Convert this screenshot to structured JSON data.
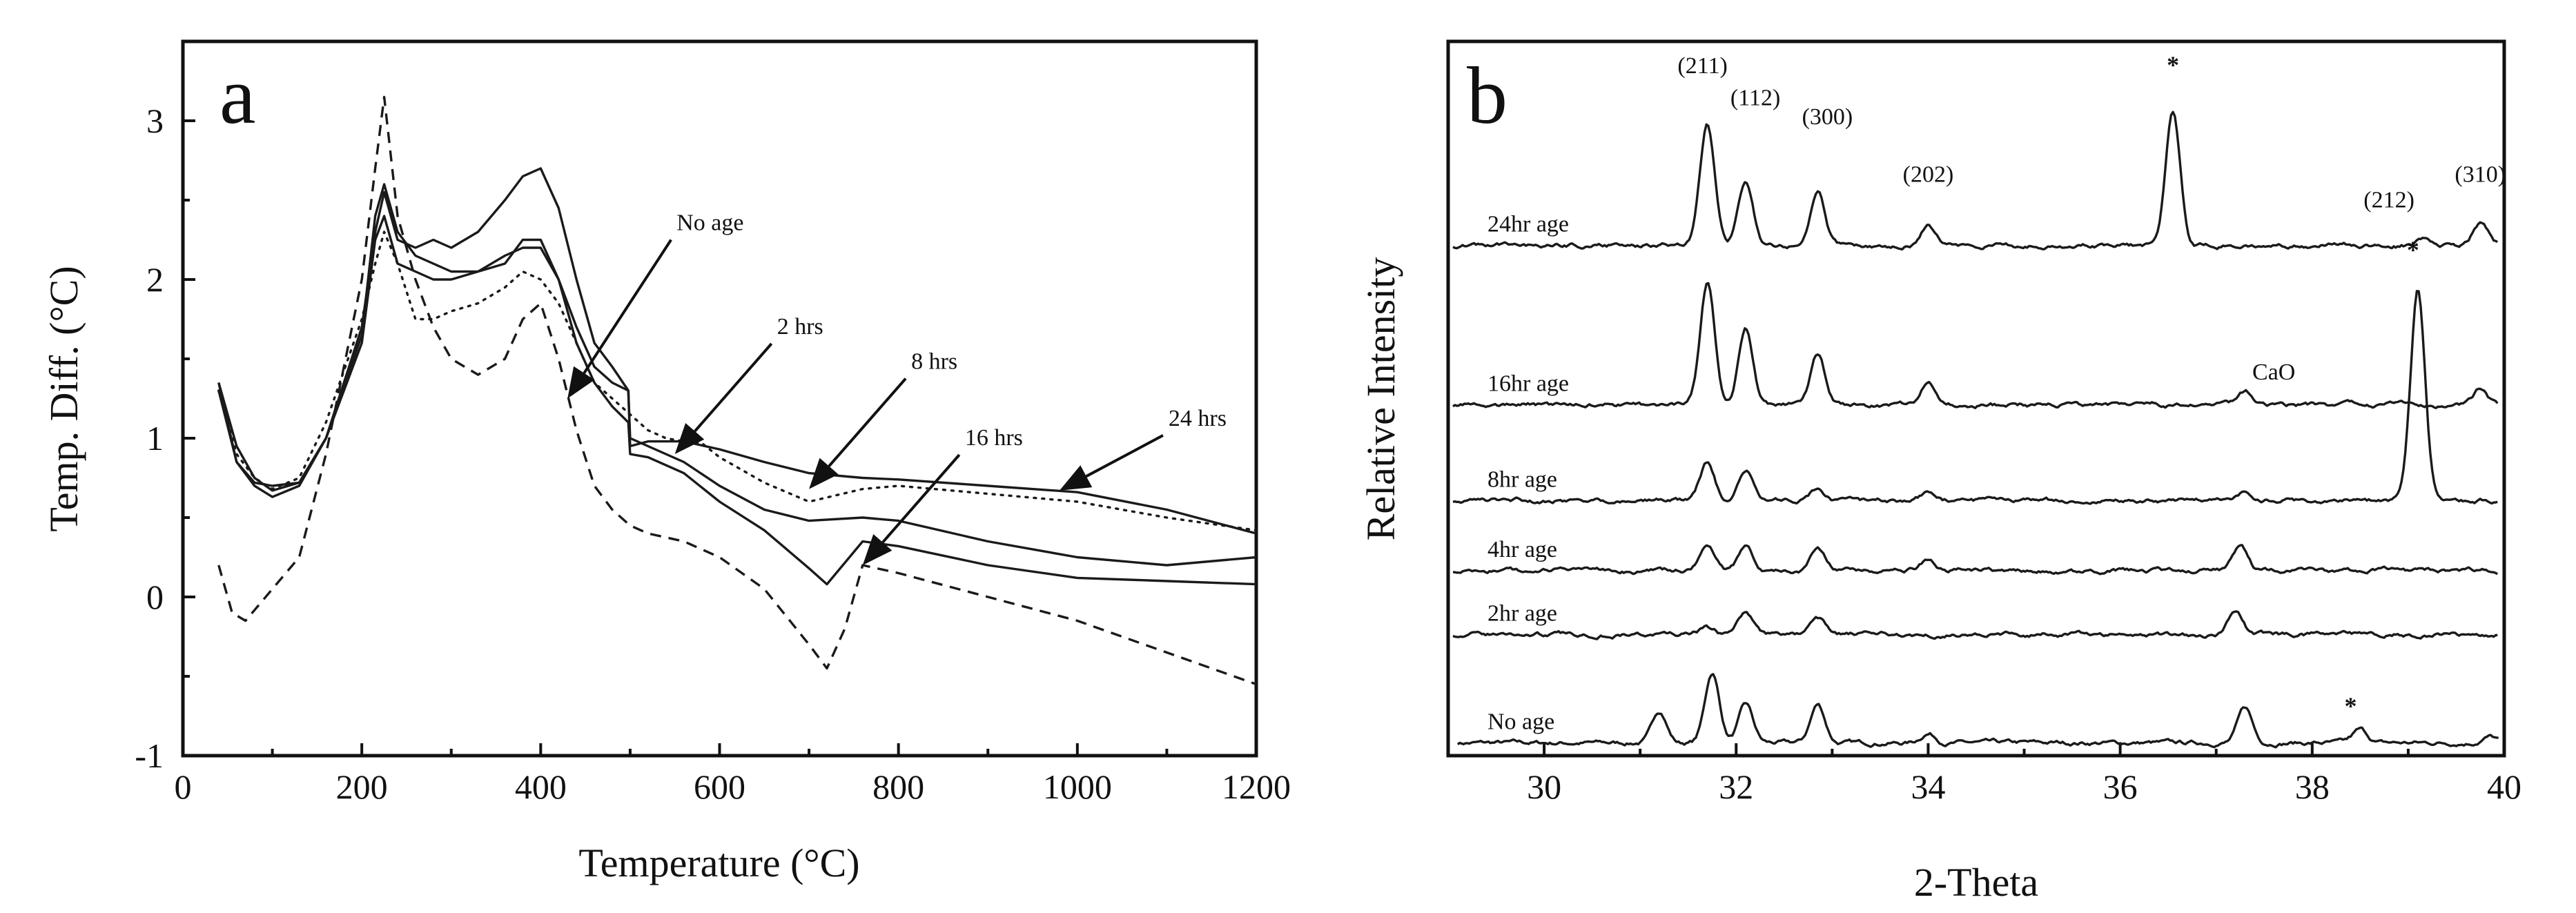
{
  "chart_data": [
    {
      "panel": "a",
      "type": "line",
      "xlabel": "Temperature (°C)",
      "ylabel": "Temp. Diff. (°C)",
      "xlim": [
        0,
        1200
      ],
      "ylim": [
        -1,
        3.5
      ],
      "xticks": [
        0,
        200,
        400,
        600,
        800,
        1000,
        1200
      ],
      "yticks": [
        -1,
        0,
        1,
        2,
        3
      ],
      "series": [
        {
          "name": "No age",
          "style": "dotted",
          "x": [
            40,
            60,
            80,
            100,
            130,
            160,
            200,
            215,
            225,
            240,
            260,
            280,
            300,
            330,
            360,
            380,
            400,
            420,
            440,
            460,
            480,
            500,
            520,
            540,
            560,
            580,
            600,
            650,
            700,
            760,
            800,
            900,
            1000,
            1100,
            1200
          ],
          "y": [
            1.3,
            0.9,
            0.75,
            0.68,
            0.75,
            1.1,
            1.75,
            2.1,
            2.3,
            2.1,
            1.75,
            1.75,
            1.8,
            1.85,
            1.95,
            2.05,
            2.0,
            1.85,
            1.6,
            1.35,
            1.25,
            1.15,
            1.05,
            1.0,
            0.98,
            0.97,
            0.88,
            0.72,
            0.6,
            0.68,
            0.7,
            0.65,
            0.6,
            0.5,
            0.42
          ]
        },
        {
          "name": "2 hrs",
          "style": "solid",
          "x": [
            40,
            60,
            80,
            100,
            130,
            160,
            200,
            215,
            225,
            240,
            260,
            280,
            300,
            330,
            360,
            380,
            400,
            420,
            440,
            460,
            480,
            498,
            500,
            520,
            560,
            600,
            650,
            700,
            760,
            800,
            900,
            1000,
            1100,
            1200
          ],
          "y": [
            1.35,
            0.95,
            0.75,
            0.67,
            0.72,
            1.0,
            1.6,
            2.25,
            2.4,
            2.1,
            2.05,
            2.0,
            2.0,
            2.05,
            2.15,
            2.2,
            2.2,
            2.0,
            1.7,
            1.45,
            1.35,
            1.3,
            0.95,
            0.98,
            0.98,
            0.93,
            0.85,
            0.78,
            0.75,
            0.74,
            0.7,
            0.66,
            0.55,
            0.4
          ]
        },
        {
          "name": "8 hrs",
          "style": "solid",
          "x": [
            40,
            60,
            80,
            100,
            130,
            160,
            200,
            215,
            225,
            240,
            260,
            280,
            300,
            330,
            360,
            380,
            400,
            420,
            440,
            460,
            480,
            498,
            500,
            520,
            560,
            600,
            650,
            700,
            760,
            800,
            900,
            1000,
            1100,
            1200
          ],
          "y": [
            1.3,
            0.85,
            0.72,
            0.7,
            0.72,
            1.0,
            1.7,
            2.3,
            2.55,
            2.25,
            2.2,
            2.25,
            2.2,
            2.3,
            2.5,
            2.65,
            2.7,
            2.45,
            2.0,
            1.6,
            1.45,
            1.3,
            1.0,
            0.95,
            0.85,
            0.7,
            0.55,
            0.48,
            0.5,
            0.48,
            0.35,
            0.25,
            0.2,
            0.25
          ]
        },
        {
          "name": "16 hrs",
          "style": "solid",
          "x": [
            40,
            60,
            80,
            100,
            130,
            160,
            200,
            215,
            225,
            240,
            260,
            280,
            300,
            330,
            360,
            380,
            400,
            420,
            440,
            460,
            480,
            498,
            500,
            520,
            560,
            600,
            650,
            700,
            720,
            760,
            800,
            900,
            1000,
            1100,
            1200
          ],
          "y": [
            1.35,
            0.85,
            0.7,
            0.63,
            0.7,
            1.0,
            1.65,
            2.4,
            2.6,
            2.3,
            2.15,
            2.1,
            2.05,
            2.05,
            2.1,
            2.25,
            2.25,
            2.0,
            1.6,
            1.35,
            1.2,
            1.1,
            0.9,
            0.88,
            0.78,
            0.6,
            0.42,
            0.18,
            0.08,
            0.35,
            0.32,
            0.2,
            0.12,
            0.1,
            0.08
          ]
        },
        {
          "name": "24 hrs",
          "style": "dashed",
          "x": [
            40,
            55,
            70,
            100,
            130,
            160,
            200,
            215,
            225,
            240,
            260,
            280,
            300,
            330,
            360,
            380,
            400,
            420,
            440,
            460,
            480,
            500,
            520,
            560,
            600,
            650,
            700,
            720,
            740,
            760,
            800,
            900,
            1000,
            1100,
            1200
          ],
          "y": [
            0.2,
            -0.1,
            -0.15,
            0.05,
            0.25,
            0.9,
            2.0,
            2.7,
            3.15,
            2.4,
            2.0,
            1.7,
            1.5,
            1.4,
            1.5,
            1.75,
            1.85,
            1.5,
            1.05,
            0.7,
            0.55,
            0.45,
            0.4,
            0.35,
            0.25,
            0.05,
            -0.3,
            -0.45,
            -0.2,
            0.2,
            0.15,
            0.0,
            -0.15,
            -0.35,
            -0.55
          ]
        }
      ],
      "arrow_labels": [
        {
          "text": "No age",
          "target_x": 430,
          "target_y": 1.25
        },
        {
          "text": "2 hrs",
          "target_x": 550,
          "target_y": 0.9
        },
        {
          "text": "8 hrs",
          "target_x": 700,
          "target_y": 0.68
        },
        {
          "text": "16 hrs",
          "target_x": 760,
          "target_y": 0.2
        },
        {
          "text": "24 hrs",
          "target_x": 980,
          "target_y": 0.67
        }
      ]
    },
    {
      "panel": "b",
      "type": "line",
      "xlabel": "2-Theta",
      "ylabel": "Relative Intensity",
      "xlim": [
        29,
        40
      ],
      "xticks": [
        30,
        32,
        34,
        36,
        38,
        40
      ],
      "series": [
        {
          "name": "No age",
          "baseline": 0.02,
          "peaks": [
            [
              31.2,
              0.05
            ],
            [
              31.75,
              0.11
            ],
            [
              32.1,
              0.06
            ],
            [
              32.85,
              0.06
            ],
            [
              34.0,
              0.015
            ],
            [
              37.3,
              0.055
            ],
            [
              38.5,
              0.02
            ],
            [
              39.85,
              0.01
            ]
          ]
        },
        {
          "name": "2hr age",
          "baseline": 0.19,
          "peaks": [
            [
              31.7,
              0.01
            ],
            [
              32.1,
              0.035
            ],
            [
              32.85,
              0.025
            ],
            [
              37.2,
              0.035
            ]
          ]
        },
        {
          "name": "4hr age",
          "baseline": 0.29,
          "peaks": [
            [
              31.7,
              0.04
            ],
            [
              32.1,
              0.035
            ],
            [
              32.85,
              0.035
            ],
            [
              34.0,
              0.015
            ],
            [
              37.25,
              0.04
            ]
          ]
        },
        {
          "name": "8hr age",
          "baseline": 0.4,
          "peaks": [
            [
              31.7,
              0.06
            ],
            [
              32.1,
              0.045
            ],
            [
              32.85,
              0.02
            ],
            [
              34.0,
              0.015
            ],
            [
              37.3,
              0.015
            ],
            [
              39.1,
              0.33
            ]
          ]
        },
        {
          "name": "16hr age",
          "baseline": 0.55,
          "peaks": [
            [
              31.7,
              0.19
            ],
            [
              32.1,
              0.12
            ],
            [
              32.85,
              0.08
            ],
            [
              34.0,
              0.035
            ],
            [
              37.3,
              0.02
            ],
            [
              39.75,
              0.025
            ]
          ]
        },
        {
          "name": "24hr age",
          "baseline": 0.8,
          "peaks": [
            [
              31.7,
              0.19
            ],
            [
              32.1,
              0.1
            ],
            [
              32.85,
              0.08
            ],
            [
              34.0,
              0.035
            ],
            [
              36.55,
              0.21
            ],
            [
              39.15,
              0.01
            ],
            [
              39.75,
              0.035
            ]
          ]
        }
      ],
      "peak_labels": [
        {
          "text": "(211)",
          "x": 31.65,
          "y": 1.07
        },
        {
          "text": "(112)",
          "x": 32.2,
          "y": 1.02
        },
        {
          "text": "(300)",
          "x": 32.95,
          "y": 0.99
        },
        {
          "text": "(202)",
          "x": 34.0,
          "y": 0.9
        },
        {
          "text": "*",
          "x": 36.55,
          "y": 1.07
        },
        {
          "text": "(212)",
          "x": 38.8,
          "y": 0.86
        },
        {
          "text": "(310)",
          "x": 39.75,
          "y": 0.9
        },
        {
          "text": "*",
          "x": 39.05,
          "y": 0.78
        },
        {
          "text": "CaO",
          "x": 37.6,
          "y": 0.59
        },
        {
          "text": "*",
          "x": 38.4,
          "y": 0.065
        }
      ]
    }
  ],
  "panel_letters": {
    "a": "a",
    "b": "b"
  }
}
